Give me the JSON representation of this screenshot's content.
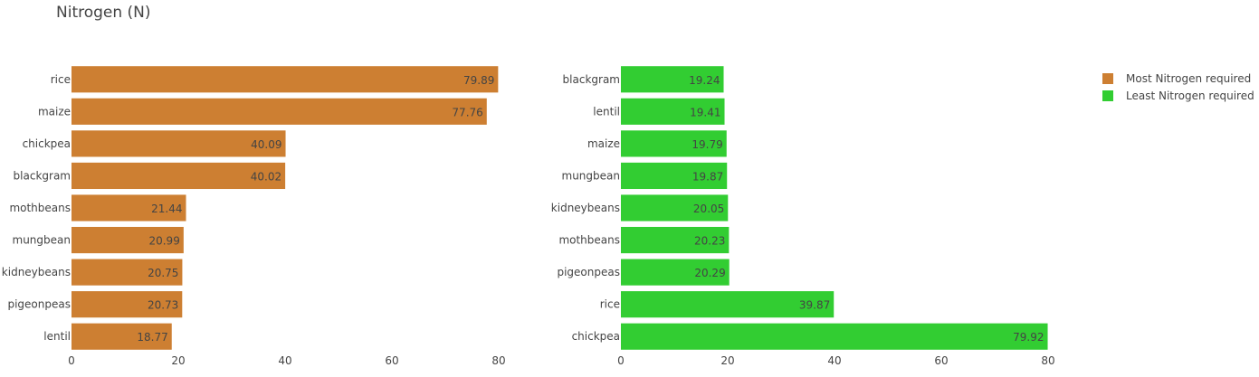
{
  "title": "Nitrogen (N)",
  "colors": {
    "most": "#cd7f32",
    "least": "#32cd32"
  },
  "chart_data": [
    {
      "type": "bar",
      "orientation": "horizontal",
      "series_name": "Most Nitrogen required",
      "categories": [
        "rice",
        "maize",
        "chickpea",
        "blackgram",
        "mothbeans",
        "mungbean",
        "kidneybeans",
        "pigeonpeas",
        "lentil"
      ],
      "values": [
        79.89,
        77.76,
        40.09,
        40.02,
        21.44,
        20.99,
        20.75,
        20.73,
        18.77
      ],
      "value_labels": [
        "79.89",
        "77.76",
        "40.09",
        "40.02",
        "21.44",
        "20.99",
        "20.75",
        "20.73",
        "18.77"
      ],
      "xlim": [
        0,
        80
      ],
      "xticks": [
        0,
        20,
        40,
        60,
        80
      ],
      "xtick_labels": [
        "0",
        "20",
        "40",
        "60",
        "80"
      ]
    },
    {
      "type": "bar",
      "orientation": "horizontal",
      "series_name": "Least Nitrogen required",
      "categories": [
        "blackgram",
        "lentil",
        "maize",
        "mungbean",
        "kidneybeans",
        "mothbeans",
        "pigeonpeas",
        "rice",
        "chickpea"
      ],
      "values": [
        19.24,
        19.41,
        19.79,
        19.87,
        20.05,
        20.23,
        20.29,
        39.87,
        79.92
      ],
      "value_labels": [
        "19.24",
        "19.41",
        "19.79",
        "19.87",
        "20.05",
        "20.23",
        "20.29",
        "39.87",
        "79.92"
      ],
      "xlim": [
        0,
        80
      ],
      "xticks": [
        0,
        20,
        40,
        60,
        80
      ],
      "xtick_labels": [
        "0",
        "20",
        "40",
        "60",
        "80"
      ]
    }
  ],
  "legend": [
    {
      "label": "Most Nitrogen required",
      "color": "#cd7f32"
    },
    {
      "label": "Least Nitrogen required",
      "color": "#32cd32"
    }
  ]
}
